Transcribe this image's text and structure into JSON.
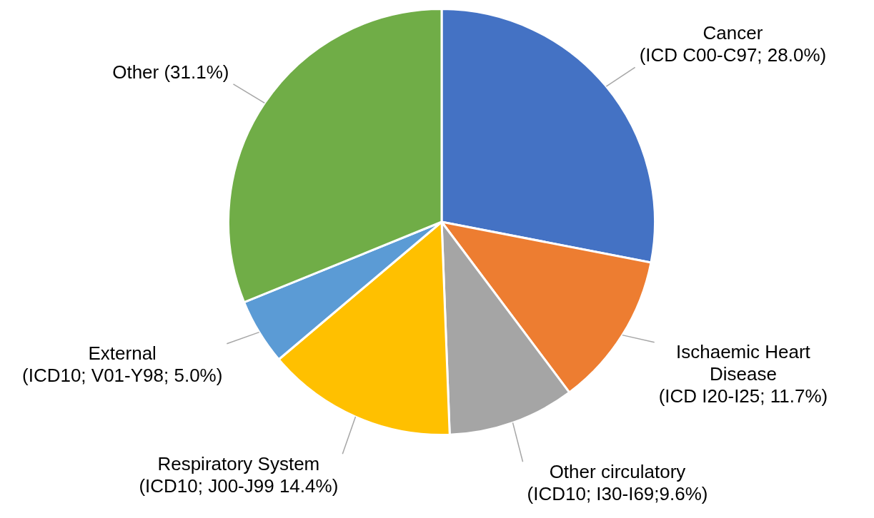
{
  "chart_data": {
    "type": "pie",
    "categories": [
      "Cancer",
      "Ischaemic Heart Disease",
      "Other circulatory",
      "Respiratory System",
      "External",
      "Other"
    ],
    "values": [
      28.0,
      11.7,
      9.6,
      14.4,
      5.0,
      31.1
    ],
    "value_labels": [
      "(ICD C00-C97; 28.0%)",
      "(ICD I20-I25; 11.7%)",
      "(ICD10; I30-I69;9.6%)",
      "(ICD10; J00-J99 14.4%)",
      "(ICD10; V01-Y98; 5.0%)",
      "(31.1%)"
    ],
    "colors": [
      "#4472c4",
      "#ed7d31",
      "#a5a5a5",
      "#ffc000",
      "#5b9bd5",
      "#70ad47"
    ]
  }
}
